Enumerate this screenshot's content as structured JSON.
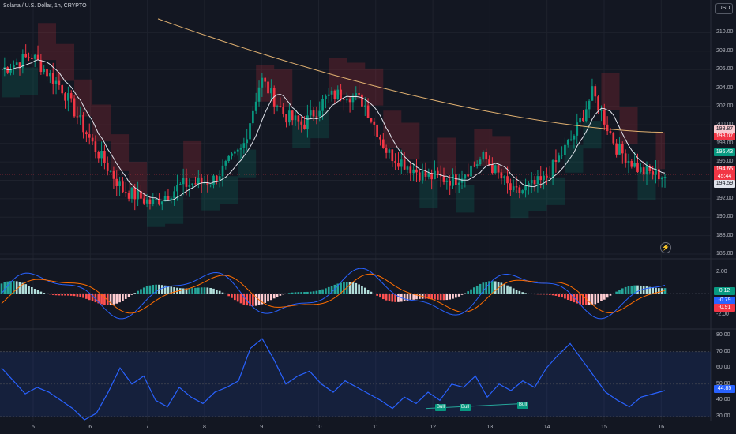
{
  "header": {
    "title": "Solana / U.S. Dollar, 1h, CRYPTO",
    "currency_button": "USD"
  },
  "price_axis": [
    "210.00",
    "208.00",
    "206.00",
    "204.00",
    "202.00",
    "200.00",
    "198.00",
    "196.00",
    "194.00",
    "192.00",
    "190.00",
    "188.00",
    "186.00"
  ],
  "macd_axis": [
    "2.00",
    "-2.00"
  ],
  "rsi_axis": [
    "80.00",
    "70.00",
    "60.00",
    "50.00",
    "40.00",
    "30.00"
  ],
  "date_axis": [
    "5",
    "6",
    "7",
    "8",
    "9",
    "10",
    "11",
    "12",
    "13",
    "14",
    "15",
    "16"
  ],
  "price_tags": {
    "upper_band": "198.87",
    "band_mid": "198.07",
    "lower_band": "196.43",
    "last_price": "194.65",
    "countdown": "45:44",
    "ma_value": "194.59"
  },
  "macd_tags": {
    "histogram": "0.12",
    "macd": "-0.79",
    "signal": "-0.91"
  },
  "rsi_tag": "44.85",
  "signals": [
    "Bull",
    "Bull",
    "Bull"
  ],
  "colors": {
    "background": "#131722",
    "up": "#089981",
    "down": "#f23645",
    "rsi_line": "#2962ff",
    "macd_line": "#2962ff",
    "signal_line": "#ff6d00",
    "ma_long": "#e0b070"
  },
  "chart_data": [
    {
      "type": "candlestick",
      "title": "Solana / U.S. Dollar, 1h, CRYPTO",
      "ylim": [
        186,
        212
      ],
      "x_ticks": [
        "5",
        "6",
        "7",
        "8",
        "9",
        "10",
        "11",
        "12",
        "13",
        "14",
        "15",
        "16"
      ],
      "close_path": [
        {
          "x": 0.0,
          "y": 206.0
        },
        {
          "x": 0.5,
          "y": 207.5
        },
        {
          "x": 1.0,
          "y": 204.0
        },
        {
          "x": 1.5,
          "y": 198.0
        },
        {
          "x": 2.0,
          "y": 193.0
        },
        {
          "x": 2.5,
          "y": 191.5
        },
        {
          "x": 3.0,
          "y": 193.5
        },
        {
          "x": 3.5,
          "y": 194.0
        },
        {
          "x": 4.0,
          "y": 197.5
        },
        {
          "x": 4.3,
          "y": 205.0
        },
        {
          "x": 4.7,
          "y": 201.0
        },
        {
          "x": 5.0,
          "y": 200.0
        },
        {
          "x": 5.4,
          "y": 203.0
        },
        {
          "x": 5.7,
          "y": 203.5
        },
        {
          "x": 6.0,
          "y": 202.5
        },
        {
          "x": 6.4,
          "y": 197.0
        },
        {
          "x": 7.0,
          "y": 194.5
        },
        {
          "x": 7.5,
          "y": 194.0
        },
        {
          "x": 8.0,
          "y": 196.5
        },
        {
          "x": 8.5,
          "y": 192.5
        },
        {
          "x": 9.0,
          "y": 194.0
        },
        {
          "x": 9.5,
          "y": 199.0
        },
        {
          "x": 9.8,
          "y": 203.5
        },
        {
          "x": 10.2,
          "y": 197.5
        },
        {
          "x": 10.6,
          "y": 195.0
        },
        {
          "x": 11.0,
          "y": 194.5
        }
      ],
      "long_ma": {
        "start": 211.5,
        "end": 199.2
      },
      "macd": {
        "ylim": [
          -3,
          3
        ],
        "ticks": [
          "2.00",
          "-2.00"
        ],
        "last": {
          "histogram": 0.12,
          "macd": -0.79,
          "signal": -0.91
        }
      },
      "rsi": {
        "ylim": [
          28,
          82
        ],
        "ticks": [
          "80.00",
          "70.00",
          "60.00",
          "50.00",
          "40.00",
          "30.00"
        ],
        "band": [
          30,
          70
        ],
        "last": 44.85,
        "series": [
          60,
          52,
          44,
          48,
          45,
          40,
          35,
          28,
          32,
          45,
          60,
          50,
          55,
          40,
          36,
          48,
          42,
          38,
          45,
          48,
          52,
          72,
          78,
          65,
          50,
          55,
          58,
          50,
          45,
          52,
          48,
          44,
          40,
          35,
          42,
          38,
          45,
          40,
          50,
          48,
          55,
          42,
          50,
          46,
          52,
          48,
          60,
          68,
          75,
          65,
          55,
          45,
          40,
          36,
          42,
          44,
          46
        ]
      }
    }
  ]
}
